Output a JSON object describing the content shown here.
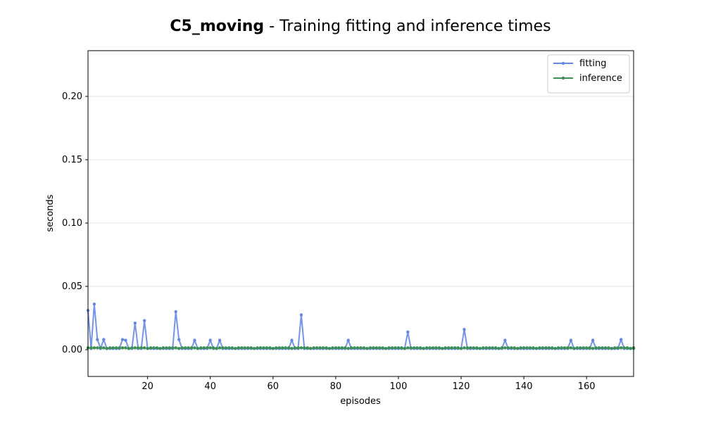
{
  "chart_data": {
    "type": "line",
    "title_bold": "C5_moving",
    "title": "- Training fitting and inference times",
    "x_label": "episodes",
    "y_label": "seconds",
    "x": [
      1,
      2,
      3,
      4,
      5,
      6,
      7,
      8,
      9,
      10,
      11,
      12,
      13,
      14,
      15,
      16,
      17,
      18,
      19,
      20,
      21,
      22,
      23,
      24,
      25,
      26,
      27,
      28,
      29,
      30,
      31,
      32,
      33,
      34,
      35,
      36,
      37,
      38,
      39,
      40,
      41,
      42,
      43,
      44,
      45,
      46,
      47,
      48,
      49,
      50,
      51,
      52,
      53,
      54,
      55,
      56,
      57,
      58,
      59,
      60,
      61,
      62,
      63,
      64,
      65,
      66,
      67,
      68,
      69,
      70,
      71,
      72,
      73,
      74,
      75,
      76,
      77,
      78,
      79,
      80,
      81,
      82,
      83,
      84,
      85,
      86,
      87,
      88,
      89,
      90,
      91,
      92,
      93,
      94,
      95,
      96,
      97,
      98,
      99,
      100,
      101,
      102,
      103,
      104,
      105,
      106,
      107,
      108,
      109,
      110,
      111,
      112,
      113,
      114,
      115,
      116,
      117,
      118,
      119,
      120,
      121,
      122,
      123,
      124,
      125,
      126,
      127,
      128,
      129,
      130,
      131,
      132,
      133,
      134,
      135,
      136,
      137,
      138,
      139,
      140,
      141,
      142,
      143,
      144,
      145,
      146,
      147,
      148,
      149,
      150,
      151,
      152,
      153,
      154,
      155,
      156,
      157,
      158,
      159,
      160,
      161,
      162,
      163,
      164,
      165,
      166,
      167,
      168,
      169,
      170,
      171,
      172,
      173,
      174,
      175
    ],
    "series": [
      {
        "name": "fitting",
        "color": "#6688e0",
        "values": [
          0.031,
          0.001,
          0.036,
          0.008,
          0.001,
          0.008,
          0.001,
          0.001,
          0.001,
          0.001,
          0.001,
          0.008,
          0.0075,
          0.001,
          0.001,
          0.021,
          0.001,
          0.001,
          0.023,
          0.001,
          0.001,
          0.001,
          0.001,
          0.001,
          0.001,
          0.001,
          0.001,
          0.001,
          0.03,
          0.008,
          0.001,
          0.001,
          0.001,
          0.001,
          0.0075,
          0.001,
          0.001,
          0.001,
          0.001,
          0.0075,
          0.001,
          0.001,
          0.0075,
          0.001,
          0.001,
          0.001,
          0.001,
          0.001,
          0.001,
          0.001,
          0.001,
          0.001,
          0.001,
          0.001,
          0.001,
          0.001,
          0.001,
          0.001,
          0.001,
          0.001,
          0.001,
          0.001,
          0.001,
          0.001,
          0.001,
          0.0075,
          0.001,
          0.001,
          0.0275,
          0.001,
          0.001,
          0.001,
          0.001,
          0.001,
          0.001,
          0.001,
          0.001,
          0.001,
          0.001,
          0.001,
          0.001,
          0.001,
          0.001,
          0.0075,
          0.001,
          0.001,
          0.001,
          0.001,
          0.001,
          0.001,
          0.001,
          0.001,
          0.001,
          0.001,
          0.001,
          0.001,
          0.001,
          0.001,
          0.001,
          0.001,
          0.001,
          0.001,
          0.014,
          0.001,
          0.001,
          0.001,
          0.001,
          0.001,
          0.001,
          0.001,
          0.001,
          0.001,
          0.001,
          0.001,
          0.001,
          0.001,
          0.001,
          0.001,
          0.001,
          0.001,
          0.016,
          0.001,
          0.001,
          0.001,
          0.001,
          0.001,
          0.001,
          0.001,
          0.001,
          0.001,
          0.001,
          0.001,
          0.001,
          0.0075,
          0.001,
          0.001,
          0.001,
          0.001,
          0.001,
          0.001,
          0.001,
          0.001,
          0.001,
          0.001,
          0.001,
          0.001,
          0.001,
          0.001,
          0.001,
          0.001,
          0.001,
          0.001,
          0.001,
          0.001,
          0.0075,
          0.001,
          0.001,
          0.001,
          0.001,
          0.001,
          0.001,
          0.0075,
          0.001,
          0.001,
          0.001,
          0.001,
          0.001,
          0.001,
          0.001,
          0.001,
          0.008,
          0.001,
          0.001,
          0.001,
          0.001
        ]
      },
      {
        "name": "inference",
        "color": "#3d8f58",
        "values": [
          0.0015,
          0.0015,
          0.0015,
          0.0015,
          0.0015,
          0.0015,
          0.001,
          0.0015,
          0.0015,
          0.0015,
          0.0015,
          0.0015,
          0.0015,
          0.001,
          0.0015,
          0.0015,
          0.0015,
          0.0015,
          0.0015,
          0.001,
          0.0015,
          0.0015,
          0.0015,
          0.001,
          0.0015,
          0.0015,
          0.0015,
          0.0015,
          0.0015,
          0.001,
          0.0015,
          0.0015,
          0.0015,
          0.0015,
          0.0015,
          0.001,
          0.0015,
          0.0015,
          0.0015,
          0.0015,
          0.0015,
          0.001,
          0.0015,
          0.0015,
          0.0015,
          0.0015,
          0.0015,
          0.001,
          0.0015,
          0.0015,
          0.0015,
          0.0015,
          0.0015,
          0.001,
          0.0015,
          0.0015,
          0.0015,
          0.0015,
          0.0015,
          0.001,
          0.0015,
          0.0015,
          0.0015,
          0.0015,
          0.0015,
          0.001,
          0.0015,
          0.0015,
          0.0015,
          0.0015,
          0.0015,
          0.001,
          0.0015,
          0.0015,
          0.0015,
          0.0015,
          0.0015,
          0.001,
          0.0015,
          0.0015,
          0.0015,
          0.0015,
          0.0015,
          0.001,
          0.0015,
          0.0015,
          0.0015,
          0.0015,
          0.0015,
          0.001,
          0.0015,
          0.0015,
          0.0015,
          0.0015,
          0.0015,
          0.001,
          0.0015,
          0.0015,
          0.0015,
          0.0015,
          0.0015,
          0.001,
          0.0015,
          0.0015,
          0.0015,
          0.0015,
          0.0015,
          0.001,
          0.0015,
          0.0015,
          0.0015,
          0.0015,
          0.0015,
          0.001,
          0.0015,
          0.0015,
          0.0015,
          0.0015,
          0.0015,
          0.001,
          0.0015,
          0.0015,
          0.0015,
          0.0015,
          0.0015,
          0.001,
          0.0015,
          0.0015,
          0.0015,
          0.0015,
          0.0015,
          0.001,
          0.0015,
          0.0015,
          0.0015,
          0.0015,
          0.0015,
          0.001,
          0.0015,
          0.0015,
          0.0015,
          0.0015,
          0.0015,
          0.001,
          0.0015,
          0.0015,
          0.0015,
          0.0015,
          0.0015,
          0.001,
          0.0015,
          0.0015,
          0.0015,
          0.0015,
          0.0015,
          0.001,
          0.0015,
          0.0015,
          0.0015,
          0.0015,
          0.0015,
          0.001,
          0.0015,
          0.0015,
          0.0015,
          0.0015,
          0.0015,
          0.001,
          0.0015,
          0.0015,
          0.0015,
          0.0015,
          0.0015,
          0.001,
          0.0015
        ]
      }
    ],
    "xlim": [
      1,
      175
    ],
    "xticks": [
      20,
      40,
      60,
      80,
      100,
      120,
      140,
      160
    ],
    "ylim": [
      -0.0211,
      0.2361
    ],
    "yticks": [
      {
        "value": 0,
        "label": "0.00"
      },
      {
        "value": 0.05,
        "label": "0.05"
      },
      {
        "value": 0.1,
        "label": "0.10"
      },
      {
        "value": 0.15,
        "label": "0.15"
      },
      {
        "value": 0.2,
        "label": "0.20"
      }
    ],
    "grid": true,
    "legend": "upper right"
  }
}
